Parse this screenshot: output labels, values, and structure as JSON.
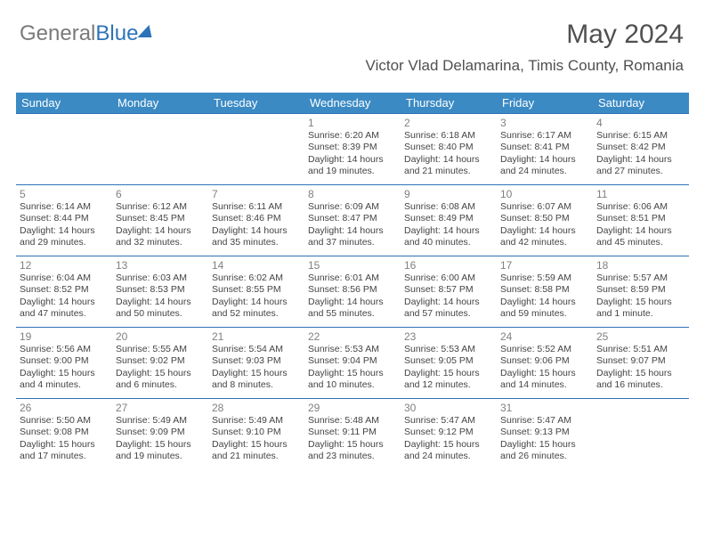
{
  "logo": {
    "gray": "General",
    "blue": "Blue"
  },
  "title": "May 2024",
  "subtitle": "Victor Vlad Delamarina, Timis County, Romania",
  "headers": [
    "Sunday",
    "Monday",
    "Tuesday",
    "Wednesday",
    "Thursday",
    "Friday",
    "Saturday"
  ],
  "colors": {
    "header_bg": "#3b8ac4",
    "header_fg": "#ffffff",
    "border": "#2e73b8",
    "daynum": "#808080",
    "text": "#444444"
  },
  "weeks": [
    [
      null,
      null,
      null,
      {
        "n": "1",
        "sr": "6:20 AM",
        "ss": "8:39 PM",
        "dl": "14 hours and 19 minutes."
      },
      {
        "n": "2",
        "sr": "6:18 AM",
        "ss": "8:40 PM",
        "dl": "14 hours and 21 minutes."
      },
      {
        "n": "3",
        "sr": "6:17 AM",
        "ss": "8:41 PM",
        "dl": "14 hours and 24 minutes."
      },
      {
        "n": "4",
        "sr": "6:15 AM",
        "ss": "8:42 PM",
        "dl": "14 hours and 27 minutes."
      }
    ],
    [
      {
        "n": "5",
        "sr": "6:14 AM",
        "ss": "8:44 PM",
        "dl": "14 hours and 29 minutes."
      },
      {
        "n": "6",
        "sr": "6:12 AM",
        "ss": "8:45 PM",
        "dl": "14 hours and 32 minutes."
      },
      {
        "n": "7",
        "sr": "6:11 AM",
        "ss": "8:46 PM",
        "dl": "14 hours and 35 minutes."
      },
      {
        "n": "8",
        "sr": "6:09 AM",
        "ss": "8:47 PM",
        "dl": "14 hours and 37 minutes."
      },
      {
        "n": "9",
        "sr": "6:08 AM",
        "ss": "8:49 PM",
        "dl": "14 hours and 40 minutes."
      },
      {
        "n": "10",
        "sr": "6:07 AM",
        "ss": "8:50 PM",
        "dl": "14 hours and 42 minutes."
      },
      {
        "n": "11",
        "sr": "6:06 AM",
        "ss": "8:51 PM",
        "dl": "14 hours and 45 minutes."
      }
    ],
    [
      {
        "n": "12",
        "sr": "6:04 AM",
        "ss": "8:52 PM",
        "dl": "14 hours and 47 minutes."
      },
      {
        "n": "13",
        "sr": "6:03 AM",
        "ss": "8:53 PM",
        "dl": "14 hours and 50 minutes."
      },
      {
        "n": "14",
        "sr": "6:02 AM",
        "ss": "8:55 PM",
        "dl": "14 hours and 52 minutes."
      },
      {
        "n": "15",
        "sr": "6:01 AM",
        "ss": "8:56 PM",
        "dl": "14 hours and 55 minutes."
      },
      {
        "n": "16",
        "sr": "6:00 AM",
        "ss": "8:57 PM",
        "dl": "14 hours and 57 minutes."
      },
      {
        "n": "17",
        "sr": "5:59 AM",
        "ss": "8:58 PM",
        "dl": "14 hours and 59 minutes."
      },
      {
        "n": "18",
        "sr": "5:57 AM",
        "ss": "8:59 PM",
        "dl": "15 hours and 1 minute."
      }
    ],
    [
      {
        "n": "19",
        "sr": "5:56 AM",
        "ss": "9:00 PM",
        "dl": "15 hours and 4 minutes."
      },
      {
        "n": "20",
        "sr": "5:55 AM",
        "ss": "9:02 PM",
        "dl": "15 hours and 6 minutes."
      },
      {
        "n": "21",
        "sr": "5:54 AM",
        "ss": "9:03 PM",
        "dl": "15 hours and 8 minutes."
      },
      {
        "n": "22",
        "sr": "5:53 AM",
        "ss": "9:04 PM",
        "dl": "15 hours and 10 minutes."
      },
      {
        "n": "23",
        "sr": "5:53 AM",
        "ss": "9:05 PM",
        "dl": "15 hours and 12 minutes."
      },
      {
        "n": "24",
        "sr": "5:52 AM",
        "ss": "9:06 PM",
        "dl": "15 hours and 14 minutes."
      },
      {
        "n": "25",
        "sr": "5:51 AM",
        "ss": "9:07 PM",
        "dl": "15 hours and 16 minutes."
      }
    ],
    [
      {
        "n": "26",
        "sr": "5:50 AM",
        "ss": "9:08 PM",
        "dl": "15 hours and 17 minutes."
      },
      {
        "n": "27",
        "sr": "5:49 AM",
        "ss": "9:09 PM",
        "dl": "15 hours and 19 minutes."
      },
      {
        "n": "28",
        "sr": "5:49 AM",
        "ss": "9:10 PM",
        "dl": "15 hours and 21 minutes."
      },
      {
        "n": "29",
        "sr": "5:48 AM",
        "ss": "9:11 PM",
        "dl": "15 hours and 23 minutes."
      },
      {
        "n": "30",
        "sr": "5:47 AM",
        "ss": "9:12 PM",
        "dl": "15 hours and 24 minutes."
      },
      {
        "n": "31",
        "sr": "5:47 AM",
        "ss": "9:13 PM",
        "dl": "15 hours and 26 minutes."
      },
      null
    ]
  ]
}
